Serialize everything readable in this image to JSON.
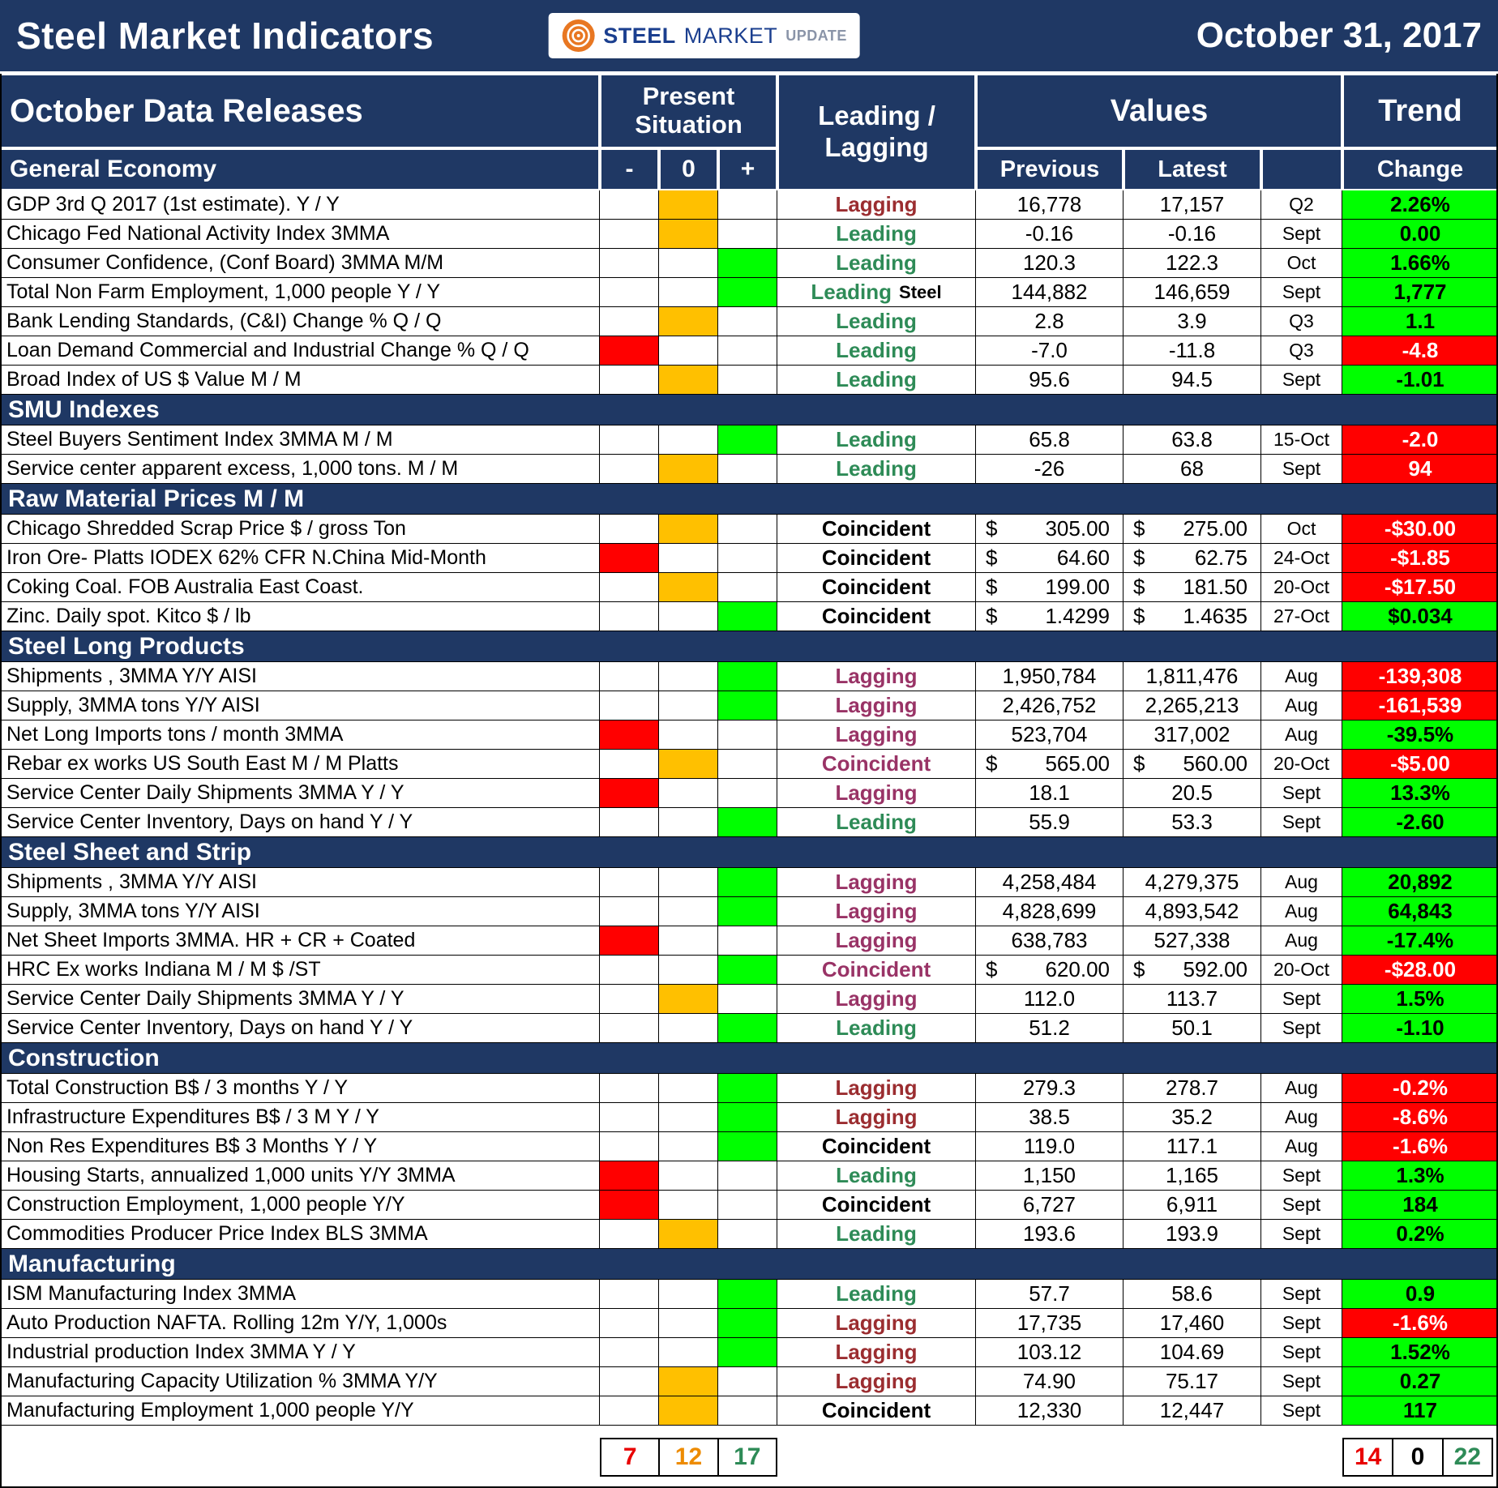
{
  "colors": {
    "navy": "#1F3864",
    "amber": "#FFC000",
    "red": "#FF0000",
    "green": "#00FF00",
    "leading_text": "#2E8B57",
    "lagging_dark_text": "#9B2D30",
    "magenta_text": "#993366",
    "coincident_text": "#000000",
    "logo_orange": "#E87722",
    "logo_blue": "#1B3F8F"
  },
  "header": {
    "title": "Steel Market Indicators",
    "date": "October 31, 2017",
    "logo": {
      "word1": "STEEL",
      "word2": "MARKET",
      "word3": "UPDATE"
    }
  },
  "columns": {
    "data_releases": "October Data Releases",
    "present_situation": "Present Situation",
    "minus": "-",
    "zero": "0",
    "plus": "+",
    "leading_lagging": "Leading / Lagging",
    "values": "Values",
    "previous": "Previous",
    "latest": "Latest",
    "trend": "Trend",
    "change": "Change"
  },
  "sections": [
    {
      "title": "General Economy",
      "rows": [
        {
          "name": "GDP 3rd Q 2017 (1st estimate). Y / Y",
          "situation": "zero",
          "classification": "Lagging",
          "class_style": "lagging-dark",
          "currency": false,
          "previous": "16,778",
          "latest": "17,157",
          "period": "Q2",
          "change": "2.26%",
          "trend": "up"
        },
        {
          "name": "Chicago Fed National Activity Index 3MMA",
          "situation": "zero",
          "classification": "Leading",
          "class_style": "leading",
          "currency": false,
          "previous": "-0.16",
          "latest": "-0.16",
          "period": "Sept",
          "change": "0.00",
          "trend": "up"
        },
        {
          "name": "Consumer Confidence, (Conf Board) 3MMA M/M",
          "situation": "plus",
          "classification": "Leading",
          "class_style": "leading",
          "currency": false,
          "previous": "120.3",
          "latest": "122.3",
          "period": "Oct",
          "change": "1.66%",
          "trend": "up"
        },
        {
          "name": "Total Non Farm Employment, 1,000 people Y / Y",
          "situation": "plus",
          "classification": "Leading",
          "suffix": "Steel",
          "class_style": "leading",
          "currency": false,
          "previous": "144,882",
          "latest": "146,659",
          "period": "Sept",
          "change": "1,777",
          "trend": "up"
        },
        {
          "name": "Bank Lending Standards, (C&I) Change % Q / Q",
          "situation": "zero",
          "classification": "Leading",
          "class_style": "leading",
          "currency": false,
          "previous": "2.8",
          "latest": "3.9",
          "period": "Q3",
          "change": "1.1",
          "trend": "up"
        },
        {
          "name": "Loan Demand Commercial and Industrial Change % Q / Q",
          "situation": "minus",
          "classification": "Leading",
          "class_style": "leading",
          "currency": false,
          "previous": "-7.0",
          "latest": "-11.8",
          "period": "Q3",
          "change": "-4.8",
          "trend": "down"
        },
        {
          "name": "Broad Index of US $ Value M / M",
          "situation": "zero",
          "classification": "Leading",
          "class_style": "leading",
          "currency": false,
          "previous": "95.6",
          "latest": "94.5",
          "period": "Sept",
          "change": "-1.01",
          "trend": "up"
        }
      ]
    },
    {
      "title": "SMU Indexes",
      "rows": [
        {
          "name": "Steel Buyers Sentiment Index 3MMA M / M",
          "situation": "plus",
          "classification": "Leading",
          "class_style": "leading",
          "currency": false,
          "previous": "65.8",
          "latest": "63.8",
          "period": "15-Oct",
          "change": "-2.0",
          "trend": "down"
        },
        {
          "name": "Service center apparent excess, 1,000 tons. M / M",
          "situation": "zero",
          "classification": "Leading",
          "class_style": "leading",
          "currency": false,
          "previous": "-26",
          "latest": "68",
          "period": "Sept",
          "change": "94",
          "trend": "down"
        }
      ]
    },
    {
      "title": "Raw Material Prices M / M",
      "rows": [
        {
          "name": "Chicago Shredded Scrap Price $ / gross Ton",
          "situation": "zero",
          "classification": "Coincident",
          "class_style": "coincident",
          "currency": true,
          "previous": "305.00",
          "latest": "275.00",
          "period": "Oct",
          "change": "-$30.00",
          "trend": "down"
        },
        {
          "name": "Iron Ore- Platts IODEX 62% CFR N.China Mid-Month",
          "situation": "minus",
          "classification": "Coincident",
          "class_style": "coincident",
          "currency": true,
          "previous": "64.60",
          "latest": "62.75",
          "period": "24-Oct",
          "change": "-$1.85",
          "trend": "down"
        },
        {
          "name": "Coking Coal. FOB Australia East Coast.",
          "situation": "zero",
          "classification": "Coincident",
          "class_style": "coincident",
          "currency": true,
          "previous": "199.00",
          "latest": "181.50",
          "period": "20-Oct",
          "change": "-$17.50",
          "trend": "down"
        },
        {
          "name": "Zinc. Daily spot. Kitco $ / lb",
          "situation": "plus",
          "classification": "Coincident",
          "class_style": "coincident",
          "currency": true,
          "previous": "1.4299",
          "latest": "1.4635",
          "period": "27-Oct",
          "change": "$0.034",
          "trend": "up"
        }
      ]
    },
    {
      "title": "Steel Long Products",
      "rows": [
        {
          "name": "Shipments , 3MMA Y/Y AISI",
          "situation": "plus",
          "classification": "Lagging",
          "class_style": "lagging-magenta",
          "currency": false,
          "previous": "1,950,784",
          "latest": "1,811,476",
          "period": "Aug",
          "change": "-139,308",
          "trend": "down"
        },
        {
          "name": "Supply, 3MMA tons Y/Y AISI",
          "situation": "plus",
          "classification": "Lagging",
          "class_style": "lagging-magenta",
          "currency": false,
          "previous": "2,426,752",
          "latest": "2,265,213",
          "period": "Aug",
          "change": "-161,539",
          "trend": "down"
        },
        {
          "name": "Net Long Imports tons / month 3MMA",
          "situation": "minus",
          "classification": "Lagging",
          "class_style": "lagging-magenta",
          "currency": false,
          "previous": "523,704",
          "latest": "317,002",
          "period": "Aug",
          "change": "-39.5%",
          "trend": "up"
        },
        {
          "name": "Rebar ex works US South East M / M Platts",
          "situation": "zero",
          "classification": "Coincident",
          "class_style": "coincident-magenta",
          "currency": true,
          "previous": "565.00",
          "latest": "560.00",
          "period": "20-Oct",
          "change": "-$5.00",
          "trend": "down"
        },
        {
          "name": "Service Center Daily Shipments 3MMA Y / Y",
          "situation": "minus",
          "classification": "Lagging",
          "class_style": "lagging-magenta",
          "currency": false,
          "previous": "18.1",
          "latest": "20.5",
          "period": "Sept",
          "change": "13.3%",
          "trend": "up"
        },
        {
          "name": "Service Center Inventory, Days on hand Y / Y",
          "situation": "plus",
          "classification": "Leading",
          "class_style": "leading",
          "currency": false,
          "previous": "55.9",
          "latest": "53.3",
          "period": "Sept",
          "change": "-2.60",
          "trend": "up"
        }
      ]
    },
    {
      "title": "Steel Sheet and Strip",
      "rows": [
        {
          "name": "Shipments , 3MMA Y/Y AISI",
          "situation": "plus",
          "classification": "Lagging",
          "class_style": "lagging-magenta",
          "currency": false,
          "previous": "4,258,484",
          "latest": "4,279,375",
          "period": "Aug",
          "change": "20,892",
          "trend": "up"
        },
        {
          "name": "Supply, 3MMA tons Y/Y AISI",
          "situation": "plus",
          "classification": "Lagging",
          "class_style": "lagging-magenta",
          "currency": false,
          "previous": "4,828,699",
          "latest": "4,893,542",
          "period": "Aug",
          "change": "64,843",
          "trend": "up"
        },
        {
          "name": "Net Sheet Imports 3MMA. HR + CR + Coated",
          "situation": "minus",
          "classification": "Lagging",
          "class_style": "lagging-magenta",
          "currency": false,
          "previous": "638,783",
          "latest": "527,338",
          "period": "Aug",
          "change": "-17.4%",
          "trend": "up"
        },
        {
          "name": "HRC Ex works Indiana M / M $ /ST",
          "situation": "plus",
          "classification": "Coincident",
          "class_style": "coincident-magenta",
          "currency": true,
          "previous": "620.00",
          "latest": "592.00",
          "period": "20-Oct",
          "change": "-$28.00",
          "trend": "down"
        },
        {
          "name": "Service Center Daily Shipments 3MMA Y / Y",
          "situation": "zero",
          "classification": "Lagging",
          "class_style": "lagging-magenta",
          "currency": false,
          "previous": "112.0",
          "latest": "113.7",
          "period": "Sept",
          "change": "1.5%",
          "trend": "up"
        },
        {
          "name": "Service Center Inventory, Days on hand Y / Y",
          "situation": "plus",
          "classification": "Leading",
          "class_style": "leading",
          "currency": false,
          "previous": "51.2",
          "latest": "50.1",
          "period": "Sept",
          "change": "-1.10",
          "trend": "up"
        }
      ]
    },
    {
      "title": "Construction",
      "rows": [
        {
          "name": "Total Construction B$ /  3 months Y / Y",
          "situation": "plus",
          "classification": "Lagging",
          "class_style": "lagging-dark",
          "currency": false,
          "previous": "279.3",
          "latest": "278.7",
          "period": "Aug",
          "change": "-0.2%",
          "trend": "down"
        },
        {
          "name": "Infrastructure Expenditures B$ / 3 M    Y / Y",
          "situation": "plus",
          "classification": "Lagging",
          "class_style": "lagging-dark",
          "currency": false,
          "previous": "38.5",
          "latest": "35.2",
          "period": "Aug",
          "change": "-8.6%",
          "trend": "down"
        },
        {
          "name": "Non Res Expenditures B$  3 Months   Y / Y",
          "situation": "plus",
          "classification": "Coincident",
          "class_style": "coincident",
          "currency": false,
          "previous": "119.0",
          "latest": "117.1",
          "period": "Aug",
          "change": "-1.6%",
          "trend": "down"
        },
        {
          "name": "Housing Starts, annualized 1,000 units Y/Y 3MMA",
          "situation": "minus",
          "classification": "Leading",
          "class_style": "leading",
          "currency": false,
          "previous": "1,150",
          "latest": "1,165",
          "period": "Sept",
          "change": "1.3%",
          "trend": "up"
        },
        {
          "name": "Construction Employment, 1,000 people Y/Y",
          "situation": "minus",
          "classification": "Coincident",
          "class_style": "coincident",
          "currency": false,
          "previous": "6,727",
          "latest": "6,911",
          "period": "Sept",
          "change": "184",
          "trend": "up"
        },
        {
          "name": "Commodities Producer Price Index BLS 3MMA",
          "situation": "zero",
          "classification": "Leading",
          "class_style": "leading",
          "currency": false,
          "previous": "193.6",
          "latest": "193.9",
          "period": "Sept",
          "change": "0.2%",
          "trend": "up"
        }
      ]
    },
    {
      "title": "Manufacturing",
      "rows": [
        {
          "name": "ISM Manufacturing Index 3MMA",
          "situation": "plus",
          "classification": "Leading",
          "class_style": "leading",
          "currency": false,
          "previous": "57.7",
          "latest": "58.6",
          "period": "Sept",
          "change": "0.9",
          "trend": "up"
        },
        {
          "name": "Auto Production NAFTA. Rolling 12m Y/Y, 1,000s",
          "situation": "plus",
          "classification": "Lagging",
          "class_style": "lagging-dark",
          "currency": false,
          "previous": "17,735",
          "latest": "17,460",
          "period": "Sept",
          "change": "-1.6%",
          "trend": "down"
        },
        {
          "name": "Industrial production Index 3MMA Y / Y",
          "situation": "plus",
          "classification": "Lagging",
          "class_style": "lagging-dark",
          "currency": false,
          "previous": "103.12",
          "latest": "104.69",
          "period": "Sept",
          "change": "1.52%",
          "trend": "up"
        },
        {
          "name": "Manufacturing Capacity Utilization % 3MMA Y/Y",
          "situation": "zero",
          "classification": "Lagging",
          "class_style": "lagging-dark",
          "currency": false,
          "previous": "74.90",
          "latest": "75.17",
          "period": "Sept",
          "change": "0.27",
          "trend": "up"
        },
        {
          "name": "Manufacturing Employment 1,000 people Y/Y",
          "situation": "zero",
          "classification": "Coincident",
          "class_style": "coincident",
          "currency": false,
          "previous": "12,330",
          "latest": "12,447",
          "period": "Sept",
          "change": "117",
          "trend": "up"
        }
      ]
    }
  ],
  "footer": {
    "situation_counts": [
      {
        "label": "7",
        "color": "red"
      },
      {
        "label": "12",
        "color": "amber"
      },
      {
        "label": "17",
        "color": "green"
      }
    ],
    "trend_counts": [
      {
        "label": "14",
        "color": "red"
      },
      {
        "label": "0",
        "color": "black"
      },
      {
        "label": "22",
        "color": "green"
      }
    ]
  }
}
